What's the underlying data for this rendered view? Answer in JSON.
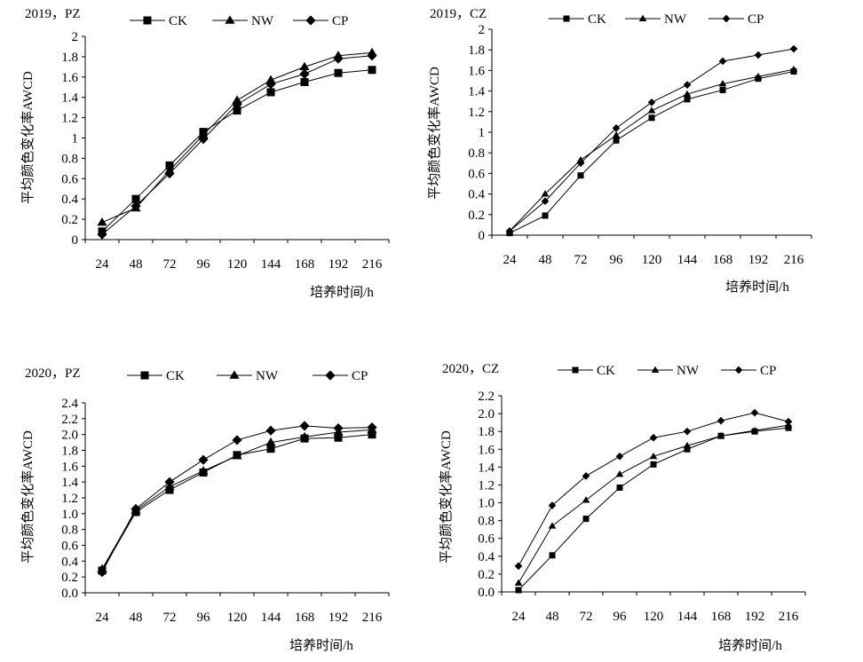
{
  "chart_data": [
    {
      "type": "line",
      "title": "2019，PZ",
      "xlabel": "培养时间/h",
      "ylabel": "平均颜色变化率AWCD",
      "categories": [
        "24",
        "48",
        "72",
        "96",
        "120",
        "144",
        "168",
        "192",
        "216"
      ],
      "ylim": [
        0,
        2
      ],
      "ystep": 0.2,
      "ydecimals": 0,
      "series": [
        {
          "name": "CK",
          "marker": "square",
          "values": [
            0.08,
            0.4,
            0.73,
            1.06,
            1.27,
            1.45,
            1.55,
            1.64,
            1.67
          ]
        },
        {
          "name": "NW",
          "marker": "triangle",
          "values": [
            0.17,
            0.31,
            0.68,
            1.03,
            1.37,
            1.57,
            1.7,
            1.81,
            1.84
          ]
        },
        {
          "name": "CP",
          "marker": "diamond",
          "values": [
            0.05,
            0.33,
            0.65,
            0.99,
            1.33,
            1.53,
            1.63,
            1.78,
            1.81
          ]
        }
      ]
    },
    {
      "type": "line",
      "title": "2019，CZ",
      "xlabel": "培养时间/h",
      "ylabel": "平均颜色变化率AWCD",
      "categories": [
        "24",
        "48",
        "72",
        "96",
        "120",
        "144",
        "168",
        "192",
        "216"
      ],
      "ylim": [
        0,
        2
      ],
      "ystep": 0.2,
      "ydecimals": 0,
      "series": [
        {
          "name": "CK",
          "marker": "square",
          "values": [
            0.02,
            0.19,
            0.58,
            0.92,
            1.14,
            1.32,
            1.41,
            1.52,
            1.59
          ]
        },
        {
          "name": "NW",
          "marker": "triangle",
          "values": [
            0.04,
            0.4,
            0.73,
            0.97,
            1.21,
            1.37,
            1.47,
            1.54,
            1.61
          ]
        },
        {
          "name": "CP",
          "marker": "diamond",
          "values": [
            0.04,
            0.33,
            0.7,
            1.04,
            1.29,
            1.46,
            1.69,
            1.75,
            1.81
          ]
        }
      ]
    },
    {
      "type": "line",
      "title": "2020，PZ",
      "xlabel": "培养时间/h",
      "ylabel": "平均颜色变化率AWCD",
      "categories": [
        "24",
        "48",
        "72",
        "96",
        "120",
        "144",
        "168",
        "192",
        "216"
      ],
      "ylim": [
        0,
        2.4
      ],
      "ystep": 0.2,
      "ydecimals": 1,
      "series": [
        {
          "name": "CK",
          "marker": "square",
          "values": [
            0.28,
            1.02,
            1.3,
            1.52,
            1.74,
            1.82,
            1.95,
            1.96,
            2.0
          ]
        },
        {
          "name": "NW",
          "marker": "triangle",
          "values": [
            0.3,
            1.04,
            1.34,
            1.54,
            1.73,
            1.9,
            1.97,
            2.03,
            2.06
          ]
        },
        {
          "name": "CP",
          "marker": "diamond",
          "values": [
            0.26,
            1.06,
            1.4,
            1.68,
            1.93,
            2.05,
            2.11,
            2.08,
            2.09
          ]
        }
      ]
    },
    {
      "type": "line",
      "title": "2020，CZ",
      "xlabel": "培养时间/h",
      "ylabel": "平均颜色变化率AWCD",
      "categories": [
        "24",
        "48",
        "72",
        "96",
        "120",
        "144",
        "168",
        "192",
        "216"
      ],
      "ylim": [
        0,
        2.2
      ],
      "ystep": 0.2,
      "ydecimals": 1,
      "series": [
        {
          "name": "CK",
          "marker": "square",
          "values": [
            0.02,
            0.41,
            0.82,
            1.17,
            1.43,
            1.6,
            1.75,
            1.8,
            1.84
          ]
        },
        {
          "name": "NW",
          "marker": "triangle",
          "values": [
            0.1,
            0.74,
            1.03,
            1.32,
            1.52,
            1.64,
            1.75,
            1.81,
            1.87
          ]
        },
        {
          "name": "CP",
          "marker": "diamond",
          "values": [
            0.29,
            0.97,
            1.3,
            1.52,
            1.73,
            1.8,
            1.92,
            2.01,
            1.91
          ]
        }
      ]
    }
  ]
}
